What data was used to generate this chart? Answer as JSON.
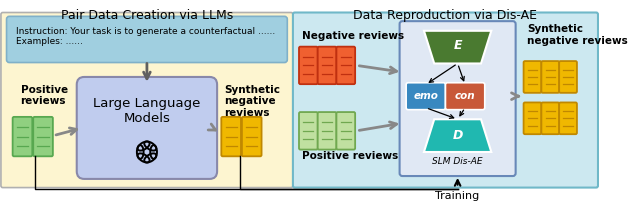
{
  "title_left": "Pair Data Creation via LLMs",
  "title_right": "Data Reproduction via Dis-AE",
  "left_bg": "#fdf5d0",
  "right_bg": "#cce8f0",
  "left_border": "#b0b0b0",
  "right_border": "#70b8c8",
  "instruction_box_bg": "#a0cfe0",
  "instruction_text_line1": "Instruction: Your task is to generate a counterfactual ......",
  "instruction_text_line2": "Examples: ......",
  "llm_box_bg": "#c0ccee",
  "llm_text": "Large Language\nModels",
  "positive_reviews_label": "Positive\nreviews",
  "synthetic_label_left": "Synthetic\nnegative\nreviews",
  "negative_reviews_label": "Negative reviews",
  "positive_reviews_label_right": "Positive reviews",
  "synthetic_label_right": "Synthetic\nnegative reviews",
  "slm_label": "SLM Dis-AE",
  "training_label": "Training",
  "green_doc_color": "#90d080",
  "green_doc_border": "#58a850",
  "orange_doc_color": "#f06030",
  "orange_doc_border": "#c03010",
  "yellow_doc_color": "#f0b800",
  "yellow_doc_border": "#c08800",
  "light_green_doc_color": "#c0e0a0",
  "light_green_doc_border": "#70a850",
  "E_box_color": "#4a7a30",
  "D_box_color": "#20b8b0",
  "emo_box_color": "#3888c0",
  "con_box_color": "#c85838",
  "slm_box_bg": "#e0e8f4",
  "slm_border_color": "#6888b8",
  "arrow_color": "#888888",
  "text_color": "#000000",
  "title_fontsize": 9,
  "label_fontsize": 7.5,
  "small_fontsize": 6.5
}
